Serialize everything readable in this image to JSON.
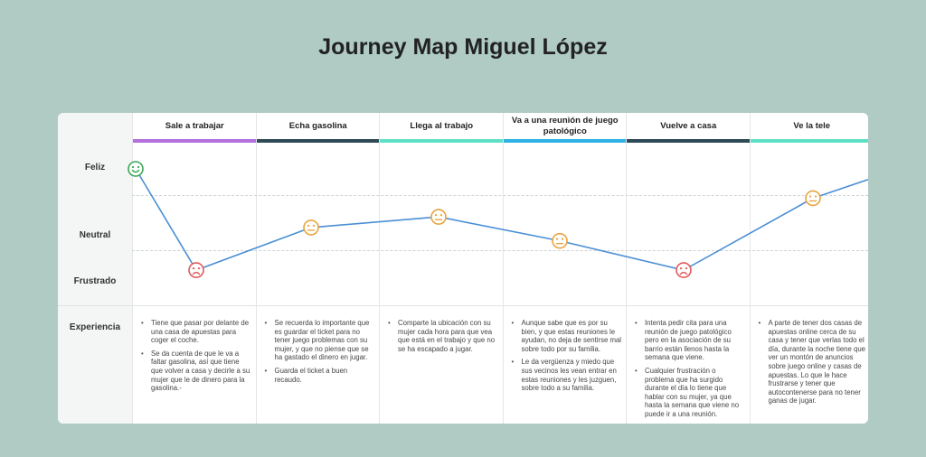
{
  "title": "Journey Map Miguel López",
  "row_labels": {
    "happy": "Feliz",
    "neutral": "Neutral",
    "frustrated": "Frustrado",
    "experience": "Experiencia"
  },
  "stages": [
    {
      "name": "Sale a trabajar",
      "color": "#b36fdc",
      "notes": [
        "Tiene que pasar por delante de una casa de apuestas para coger el coche.",
        "Se da cuenta de que le va a faltar gasolina, así que tiene que volver a casa y decirle a su mujer que le de dinero para la gasolina.-"
      ]
    },
    {
      "name": "Echa gasolina",
      "color": "#2e4a56",
      "notes": [
        "Se recuerda lo importante que es guardar el ticket para no tener juego problemas con su mujer, y que no piense que se ha gastado el dinero en jugar.",
        "Guarda el ticket a buen recaudo."
      ]
    },
    {
      "name": "Llega al trabajo",
      "color": "#5fe0c4",
      "notes": [
        "Comparte la ubicación con su mujer cada hora para que vea que está en el trabajo y que no se ha escapado a jugar."
      ]
    },
    {
      "name": "Va a una reunión de juego patológico",
      "color": "#2fb3e6",
      "notes": [
        "Aunque sabe que es por su bien, y que estas reuniones le ayudan, no deja de sentirse mal sobre todo por su familia.",
        "Le da vergüenza y miedo que sus vecinos les vean entrar en estas reuniones y les juzguen, sobre todo a su familia."
      ]
    },
    {
      "name": "Vuelve a casa",
      "color": "#2e4a56",
      "notes": [
        "Intenta pedir cita para una reunión de juego patológico pero en la asociación de su barrio están llenos hasta la semana que viene.",
        "Cualquier frustración o problema que ha surgido durante el día lo tiene que hablar con su mujer, ya que hasta la semana que viene no puede ir a una reunión."
      ]
    },
    {
      "name": "Ve la tele",
      "color": "#5fe0c4",
      "notes": [
        "A parte de tener dos casas de apuestas online cerca de su casa y tener que verlas todo el día, durante la noche tiene que ver un montón de anuncios sobre juego online y casas de apuestas. Lo que le hace frustrarse y tener que autocontenerse para no tener ganas de jugar."
      ]
    }
  ],
  "chart_data": {
    "type": "line",
    "y_levels": [
      "Frustrado",
      "Neutral",
      "Feliz"
    ],
    "points": [
      {
        "mood": "happy",
        "value": 3.0
      },
      {
        "mood": "sad",
        "value": 1.1
      },
      {
        "mood": "neutral",
        "value": 1.9
      },
      {
        "mood": "neutral",
        "value": 2.1
      },
      {
        "mood": "neutral",
        "value": 1.65
      },
      {
        "mood": "sad",
        "value": 1.1
      },
      {
        "mood": "neutral",
        "value": 2.45
      },
      {
        "mood": "none",
        "value": 2.8
      }
    ],
    "colors": {
      "happy": "#3aa655",
      "neutral": "#e8a33d",
      "sad": "#e05a5a",
      "line": "#4a8fd4"
    }
  }
}
